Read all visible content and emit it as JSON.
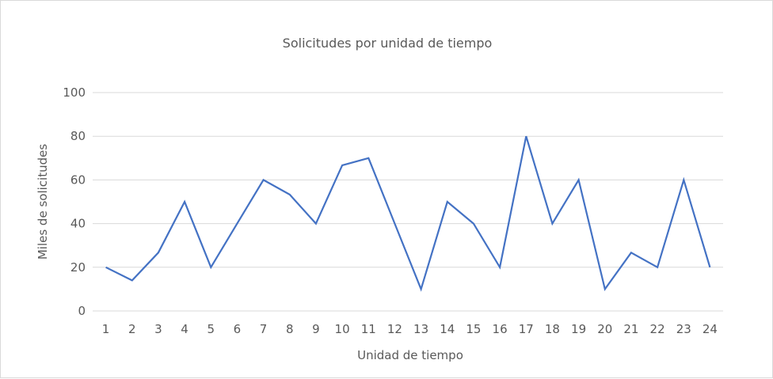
{
  "chart_data": {
    "type": "line",
    "title": "Solicitudes por unidad de tiempo",
    "xlabel": "Unidad de tiempo",
    "ylabel": "Miles de solicitudes",
    "categories": [
      "1",
      "2",
      "3",
      "4",
      "5",
      "6",
      "7",
      "8",
      "9",
      "10",
      "11",
      "12",
      "13",
      "14",
      "15",
      "16",
      "17",
      "18",
      "19",
      "20",
      "21",
      "22",
      "23",
      "24"
    ],
    "series": [
      {
        "name": "Solicitudes",
        "color": "#4472c4",
        "values": [
          20,
          14,
          26.7,
          50,
          20,
          40,
          60,
          53.3,
          40,
          66.7,
          70,
          40,
          10,
          50,
          40,
          20,
          80,
          40,
          60,
          10,
          26.7,
          20,
          60,
          20
        ]
      }
    ],
    "ylim": [
      0,
      100
    ],
    "yticks": [
      0,
      20,
      40,
      60,
      80,
      100
    ],
    "grid": true,
    "legend": "none"
  }
}
